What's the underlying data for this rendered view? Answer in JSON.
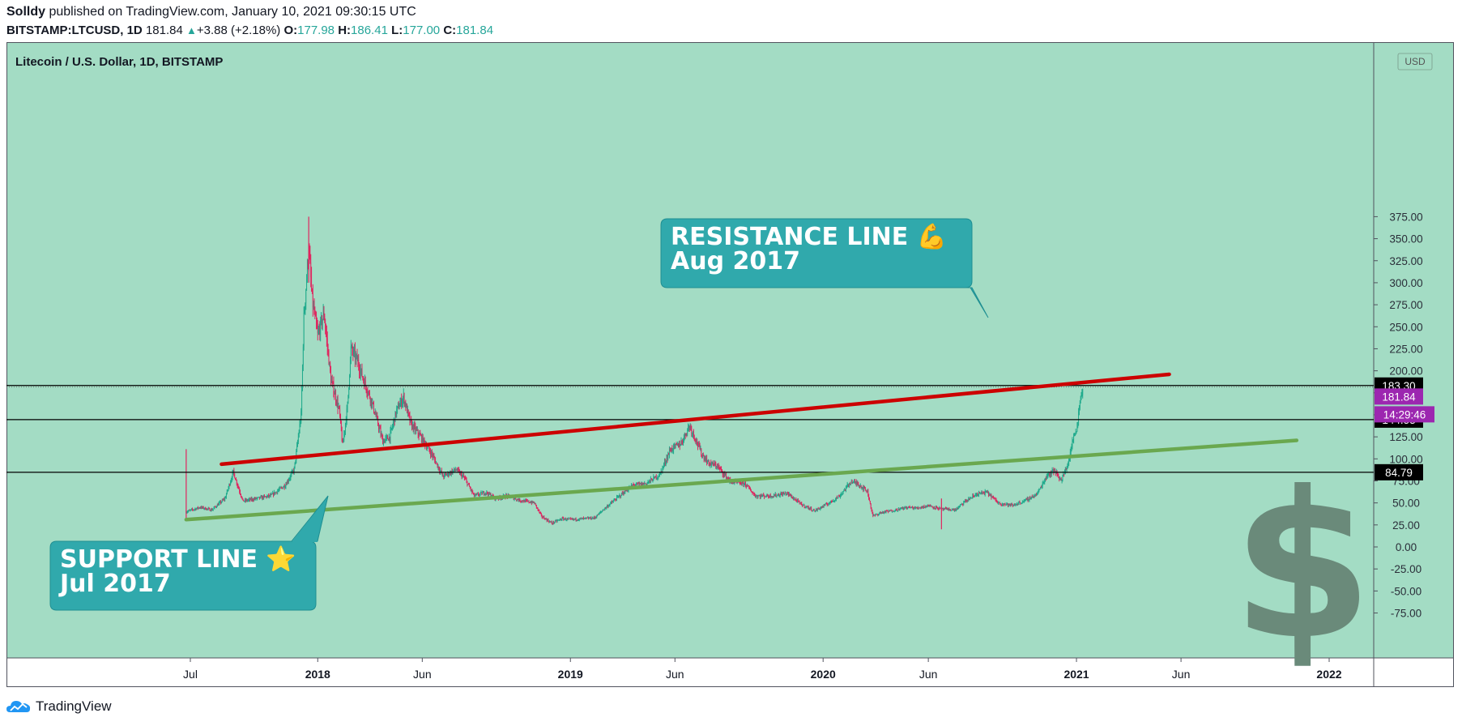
{
  "header": {
    "author": "Solldy",
    "published_text": "published on TradingView.com, January 10, 2021 09:30:15 UTC",
    "symbol": "BITSTAMP:LTCUSD, 1D",
    "last": "181.84",
    "change": "+3.88 (+2.18%)",
    "open_label": "O:",
    "open": "177.98",
    "high_label": "H:",
    "high": "186.41",
    "low_label": "L:",
    "low": "177.00",
    "close_label": "C:",
    "close": "181.84"
  },
  "chart_data": {
    "type": "candlestick",
    "title": "Litecoin / U.S. Dollar, 1D, BITSTAMP",
    "currency_label": "USD",
    "background": "#a3dcc4",
    "up_color": "#1faa8c",
    "down_color": "#e0245e",
    "y_ticks": [
      375,
      350,
      325,
      300,
      275,
      250,
      225,
      200,
      175,
      150,
      125,
      100,
      75,
      50,
      25,
      0,
      -25,
      -50,
      -75
    ],
    "ylim": [
      -90,
      380
    ],
    "x_ticks": [
      {
        "label": "Jul",
        "date": "2017-07-01",
        "bold": false
      },
      {
        "label": "2018",
        "date": "2018-01-01",
        "bold": true
      },
      {
        "label": "Jun",
        "date": "2018-06-01",
        "bold": false
      },
      {
        "label": "2019",
        "date": "2019-01-01",
        "bold": true
      },
      {
        "label": "Jun",
        "date": "2019-06-01",
        "bold": false
      },
      {
        "label": "2020",
        "date": "2020-01-01",
        "bold": true
      },
      {
        "label": "Jun",
        "date": "2020-06-01",
        "bold": false
      },
      {
        "label": "2021",
        "date": "2021-01-01",
        "bold": true
      },
      {
        "label": "Jun",
        "date": "2021-06-01",
        "bold": false
      },
      {
        "label": "2022",
        "date": "2022-01-01",
        "bold": true
      }
    ],
    "price_path": [
      [
        "2017-06-25",
        40
      ],
      [
        "2017-07-15",
        45
      ],
      [
        "2017-08-01",
        42
      ],
      [
        "2017-08-20",
        55
      ],
      [
        "2017-09-01",
        85
      ],
      [
        "2017-09-15",
        52
      ],
      [
        "2017-10-05",
        55
      ],
      [
        "2017-10-25",
        58
      ],
      [
        "2017-11-15",
        70
      ],
      [
        "2017-11-28",
        88
      ],
      [
        "2017-12-08",
        150
      ],
      [
        "2017-12-12",
        260
      ],
      [
        "2017-12-19",
        340
      ],
      [
        "2017-12-24",
        280
      ],
      [
        "2018-01-01",
        240
      ],
      [
        "2018-01-10",
        265
      ],
      [
        "2018-01-20",
        190
      ],
      [
        "2018-02-01",
        155
      ],
      [
        "2018-02-06",
        115
      ],
      [
        "2018-02-13",
        160
      ],
      [
        "2018-02-18",
        225
      ],
      [
        "2018-02-28",
        210
      ],
      [
        "2018-03-08",
        190
      ],
      [
        "2018-03-20",
        165
      ],
      [
        "2018-04-05",
        120
      ],
      [
        "2018-04-15",
        125
      ],
      [
        "2018-04-25",
        155
      ],
      [
        "2018-05-05",
        170
      ],
      [
        "2018-05-15",
        140
      ],
      [
        "2018-05-30",
        125
      ],
      [
        "2018-06-15",
        105
      ],
      [
        "2018-07-01",
        80
      ],
      [
        "2018-07-20",
        88
      ],
      [
        "2018-08-01",
        78
      ],
      [
        "2018-08-15",
        58
      ],
      [
        "2018-09-01",
        62
      ],
      [
        "2018-09-15",
        55
      ],
      [
        "2018-10-01",
        58
      ],
      [
        "2018-10-20",
        53
      ],
      [
        "2018-11-10",
        50
      ],
      [
        "2018-11-20",
        35
      ],
      [
        "2018-12-05",
        27
      ],
      [
        "2018-12-20",
        32
      ],
      [
        "2019-01-01",
        31
      ],
      [
        "2019-01-20",
        32
      ],
      [
        "2019-02-05",
        33
      ],
      [
        "2019-02-20",
        44
      ],
      [
        "2019-03-10",
        56
      ],
      [
        "2019-04-01",
        70
      ],
      [
        "2019-04-20",
        72
      ],
      [
        "2019-05-10",
        82
      ],
      [
        "2019-05-25",
        110
      ],
      [
        "2019-06-10",
        118
      ],
      [
        "2019-06-22",
        138
      ],
      [
        "2019-07-01",
        122
      ],
      [
        "2019-07-10",
        105
      ],
      [
        "2019-07-20",
        95
      ],
      [
        "2019-08-01",
        92
      ],
      [
        "2019-08-20",
        74
      ],
      [
        "2019-09-10",
        72
      ],
      [
        "2019-09-25",
        58
      ],
      [
        "2019-10-20",
        58
      ],
      [
        "2019-11-10",
        61
      ],
      [
        "2019-12-01",
        48
      ],
      [
        "2019-12-20",
        41
      ],
      [
        "2020-01-10",
        50
      ],
      [
        "2020-01-25",
        58
      ],
      [
        "2020-02-10",
        74
      ],
      [
        "2020-02-20",
        72
      ],
      [
        "2020-03-05",
        63
      ],
      [
        "2020-03-13",
        35
      ],
      [
        "2020-03-25",
        39
      ],
      [
        "2020-04-15",
        42
      ],
      [
        "2020-05-01",
        45
      ],
      [
        "2020-05-15",
        44
      ],
      [
        "2020-06-01",
        47
      ],
      [
        "2020-06-20",
        43
      ],
      [
        "2020-07-10",
        42
      ],
      [
        "2020-07-25",
        52
      ],
      [
        "2020-08-10",
        60
      ],
      [
        "2020-08-25",
        62
      ],
      [
        "2020-09-10",
        50
      ],
      [
        "2020-10-01",
        47
      ],
      [
        "2020-10-20",
        53
      ],
      [
        "2020-11-05",
        60
      ],
      [
        "2020-11-20",
        82
      ],
      [
        "2020-12-01",
        87
      ],
      [
        "2020-12-10",
        75
      ],
      [
        "2020-12-20",
        95
      ],
      [
        "2020-12-27",
        122
      ],
      [
        "2021-01-02",
        138
      ],
      [
        "2021-01-06",
        165
      ],
      [
        "2021-01-10",
        182
      ]
    ],
    "horizontal_levels": [
      {
        "value": 183.3,
        "label": "183.30"
      },
      {
        "value": 144.53,
        "label": "144.53"
      },
      {
        "value": 84.79,
        "label": "84.79"
      }
    ],
    "last_price": {
      "value": 181.84,
      "label": "181.84",
      "countdown": "14:29:46",
      "color": "#9c27b0"
    },
    "trend_lines": [
      {
        "name": "resistance",
        "color": "#cc0000",
        "from": [
          "2017-08-15",
          94
        ],
        "to": [
          "2021-05-15",
          196
        ]
      },
      {
        "name": "support",
        "color": "#6aa84f",
        "from": [
          "2017-06-25",
          31
        ],
        "to": [
          "2021-11-15",
          121
        ]
      }
    ],
    "callouts": [
      {
        "line1": "RESISTANCE LINE 💪",
        "line2": "Aug 2017",
        "color": "#30a9ac"
      },
      {
        "line1": "SUPPORT LINE ⭐",
        "line2": "Jul 2017",
        "color": "#30a9ac"
      }
    ],
    "watermark_icon": "dollar-sign-icon",
    "watermark_color": "#6a8a7a"
  },
  "footer": {
    "brand": "TradingView",
    "logo_icon": "tradingview-cloud-icon"
  }
}
